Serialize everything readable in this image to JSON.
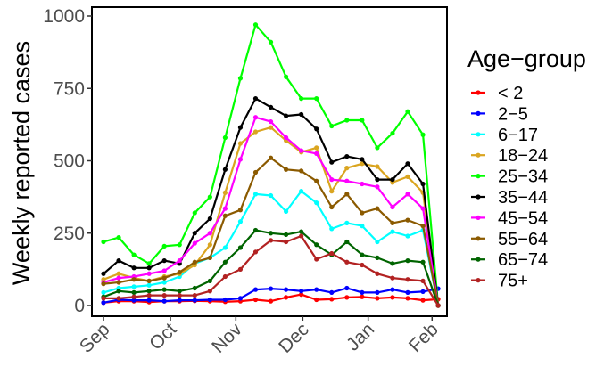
{
  "chart_data": {
    "type": "line",
    "xlabel": "",
    "ylabel": "Weekly reported cases",
    "ylim": [
      0,
      1000
    ],
    "yticks": [
      0,
      250,
      500,
      750,
      1000
    ],
    "xticks": [
      "Sep",
      "Oct",
      "Nov",
      "Dec",
      "Jan",
      "Feb"
    ],
    "xtick_week_index": [
      0.0,
      4.4,
      8.7,
      13.1,
      17.4,
      21.6
    ],
    "x": [
      0,
      1,
      2,
      3,
      4,
      5,
      6,
      7,
      8,
      9,
      10,
      11,
      12,
      13,
      14,
      15,
      16,
      17,
      18,
      19,
      20,
      21,
      22
    ],
    "legend_title": "Age−group",
    "legend_position": "right",
    "grid": false,
    "series": [
      {
        "name": "< 2",
        "color": "#ff0000",
        "values": [
          10,
          15,
          15,
          12,
          15,
          15,
          16,
          15,
          13,
          15,
          20,
          15,
          28,
          38,
          20,
          22,
          28,
          30,
          25,
          28,
          25,
          18,
          22
        ]
      },
      {
        "name": "2−5",
        "color": "#0000ff",
        "values": [
          10,
          20,
          18,
          18,
          15,
          18,
          18,
          20,
          20,
          25,
          55,
          58,
          55,
          50,
          55,
          45,
          60,
          45,
          45,
          55,
          45,
          48,
          58
        ]
      },
      {
        "name": "6−17",
        "color": "#00ffff",
        "values": [
          45,
          60,
          65,
          70,
          80,
          100,
          145,
          165,
          200,
          290,
          385,
          380,
          325,
          395,
          355,
          265,
          285,
          275,
          220,
          255,
          240,
          260,
          0
        ]
      },
      {
        "name": "18−24",
        "color": "#daa520",
        "values": [
          90,
          110,
          95,
          85,
          100,
          110,
          140,
          210,
          390,
          560,
          600,
          615,
          570,
          530,
          545,
          395,
          475,
          490,
          480,
          425,
          445,
          390,
          0
        ]
      },
      {
        "name": "25−34",
        "color": "#00ff00",
        "values": [
          220,
          235,
          175,
          145,
          205,
          210,
          320,
          375,
          580,
          785,
          970,
          910,
          790,
          715,
          715,
          620,
          640,
          640,
          545,
          595,
          670,
          590,
          0
        ]
      },
      {
        "name": "35−44",
        "color": "#000000",
        "values": [
          110,
          155,
          130,
          130,
          155,
          145,
          250,
          300,
          470,
          615,
          715,
          685,
          655,
          660,
          610,
          495,
          515,
          505,
          435,
          435,
          490,
          420,
          0
        ]
      },
      {
        "name": "45−54",
        "color": "#ff00ff",
        "values": [
          80,
          95,
          100,
          110,
          120,
          155,
          215,
          250,
          335,
          505,
          650,
          635,
          580,
          535,
          525,
          435,
          430,
          420,
          410,
          340,
          385,
          335,
          0
        ]
      },
      {
        "name": "55−64",
        "color": "#8b5a00",
        "values": [
          75,
          80,
          90,
          85,
          95,
          115,
          150,
          165,
          310,
          330,
          460,
          510,
          470,
          465,
          430,
          340,
          385,
          320,
          335,
          285,
          295,
          275,
          0
        ]
      },
      {
        "name": "65−74",
        "color": "#006400",
        "values": [
          30,
          50,
          45,
          50,
          55,
          50,
          60,
          85,
          150,
          200,
          260,
          250,
          245,
          255,
          210,
          175,
          220,
          175,
          165,
          145,
          155,
          150,
          0
        ]
      },
      {
        "name": "75+",
        "color": "#b22222",
        "values": [
          25,
          25,
          30,
          35,
          35,
          35,
          35,
          50,
          100,
          125,
          185,
          225,
          220,
          240,
          160,
          180,
          150,
          140,
          110,
          95,
          90,
          85,
          0
        ]
      }
    ]
  }
}
